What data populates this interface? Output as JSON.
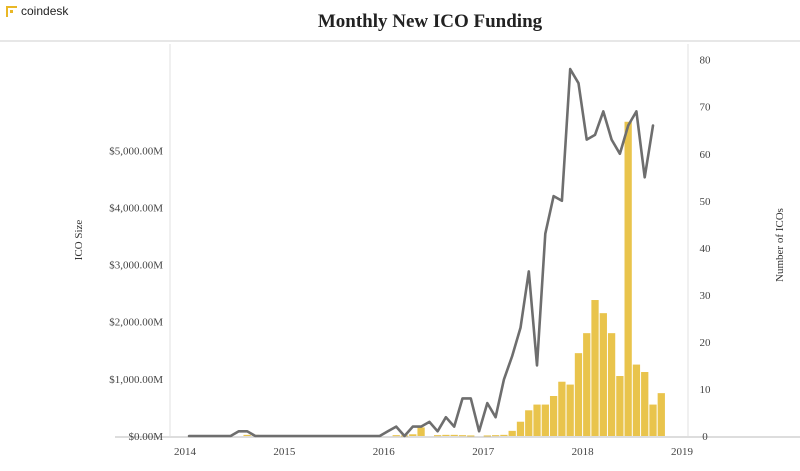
{
  "brand": {
    "name": "coindesk",
    "icon": "coindesk-logo-icon",
    "accent": "#e9b726"
  },
  "chart_data": {
    "type": "bar+line",
    "title": "Monthly New ICO Funding",
    "x_ticks": [
      "2014",
      "2015",
      "2016",
      "2017",
      "2018",
      "2019"
    ],
    "left_axis": {
      "label": "ICO Size",
      "ticks": [
        "$0.00M",
        "$1,000.00M",
        "$2,000.00M",
        "$3,000.00M",
        "$4,000.00M",
        "$5,000.00M"
      ],
      "range": [
        0,
        6000
      ]
    },
    "right_axis": {
      "label": "Number of ICOs",
      "ticks": [
        "0",
        "10",
        "20",
        "30",
        "40",
        "50",
        "60",
        "70",
        "80"
      ],
      "range": [
        0,
        80
      ]
    },
    "bar_color": "#e9c44c",
    "line_color": "#6e6e6e",
    "bars": [
      {
        "month": "2014-08",
        "value": 20
      },
      {
        "month": "2014-09",
        "value": 20
      },
      {
        "month": "2016-02",
        "value": 15
      },
      {
        "month": "2016-03",
        "value": 10
      },
      {
        "month": "2016-04",
        "value": 30
      },
      {
        "month": "2016-05",
        "value": 150
      },
      {
        "month": "2016-07",
        "value": 15
      },
      {
        "month": "2016-08",
        "value": 20
      },
      {
        "month": "2016-09",
        "value": 20
      },
      {
        "month": "2016-10",
        "value": 15
      },
      {
        "month": "2016-11",
        "value": 10
      },
      {
        "month": "2017-01",
        "value": 10
      },
      {
        "month": "2017-02",
        "value": 15
      },
      {
        "month": "2017-03",
        "value": 20
      },
      {
        "month": "2017-04",
        "value": 90
      },
      {
        "month": "2017-05",
        "value": 250
      },
      {
        "month": "2017-06",
        "value": 450
      },
      {
        "month": "2017-07",
        "value": 550
      },
      {
        "month": "2017-08",
        "value": 550
      },
      {
        "month": "2017-09",
        "value": 700
      },
      {
        "month": "2017-10",
        "value": 950
      },
      {
        "month": "2017-11",
        "value": 900
      },
      {
        "month": "2017-12",
        "value": 1450
      },
      {
        "month": "2018-01",
        "value": 1800
      },
      {
        "month": "2018-02",
        "value": 2380
      },
      {
        "month": "2018-03",
        "value": 2150
      },
      {
        "month": "2018-04",
        "value": 1800
      },
      {
        "month": "2018-05",
        "value": 1050
      },
      {
        "month": "2018-06",
        "value": 5500
      },
      {
        "month": "2018-07",
        "value": 1250
      },
      {
        "month": "2018-08",
        "value": 1120
      },
      {
        "month": "2018-09",
        "value": 550
      },
      {
        "month": "2018-10",
        "value": 750
      }
    ],
    "line": [
      {
        "month": "2014-01",
        "count": 0
      },
      {
        "month": "2014-06",
        "count": 0
      },
      {
        "month": "2014-07",
        "count": 1
      },
      {
        "month": "2014-08",
        "count": 1
      },
      {
        "month": "2014-09",
        "count": 0
      },
      {
        "month": "2015-12",
        "count": 0
      },
      {
        "month": "2016-01",
        "count": 1
      },
      {
        "month": "2016-02",
        "count": 2
      },
      {
        "month": "2016-03",
        "count": 0
      },
      {
        "month": "2016-04",
        "count": 2
      },
      {
        "month": "2016-05",
        "count": 2
      },
      {
        "month": "2016-06",
        "count": 3
      },
      {
        "month": "2016-07",
        "count": 1
      },
      {
        "month": "2016-08",
        "count": 4
      },
      {
        "month": "2016-09",
        "count": 2
      },
      {
        "month": "2016-10",
        "count": 8
      },
      {
        "month": "2016-11",
        "count": 8
      },
      {
        "month": "2016-12",
        "count": 1
      },
      {
        "month": "2017-01",
        "count": 7
      },
      {
        "month": "2017-02",
        "count": 4
      },
      {
        "month": "2017-03",
        "count": 12
      },
      {
        "month": "2017-04",
        "count": 17
      },
      {
        "month": "2017-05",
        "count": 23
      },
      {
        "month": "2017-06",
        "count": 35
      },
      {
        "month": "2017-07",
        "count": 15
      },
      {
        "month": "2017-08",
        "count": 43
      },
      {
        "month": "2017-09",
        "count": 51
      },
      {
        "month": "2017-10",
        "count": 50
      },
      {
        "month": "2017-11",
        "count": 78
      },
      {
        "month": "2017-12",
        "count": 75
      },
      {
        "month": "2018-01",
        "count": 63
      },
      {
        "month": "2018-02",
        "count": 64
      },
      {
        "month": "2018-03",
        "count": 69
      },
      {
        "month": "2018-04",
        "count": 63
      },
      {
        "month": "2018-05",
        "count": 60
      },
      {
        "month": "2018-06",
        "count": 66
      },
      {
        "month": "2018-07",
        "count": 69
      },
      {
        "month": "2018-08",
        "count": 55
      },
      {
        "month": "2018-09",
        "count": 66
      }
    ]
  }
}
